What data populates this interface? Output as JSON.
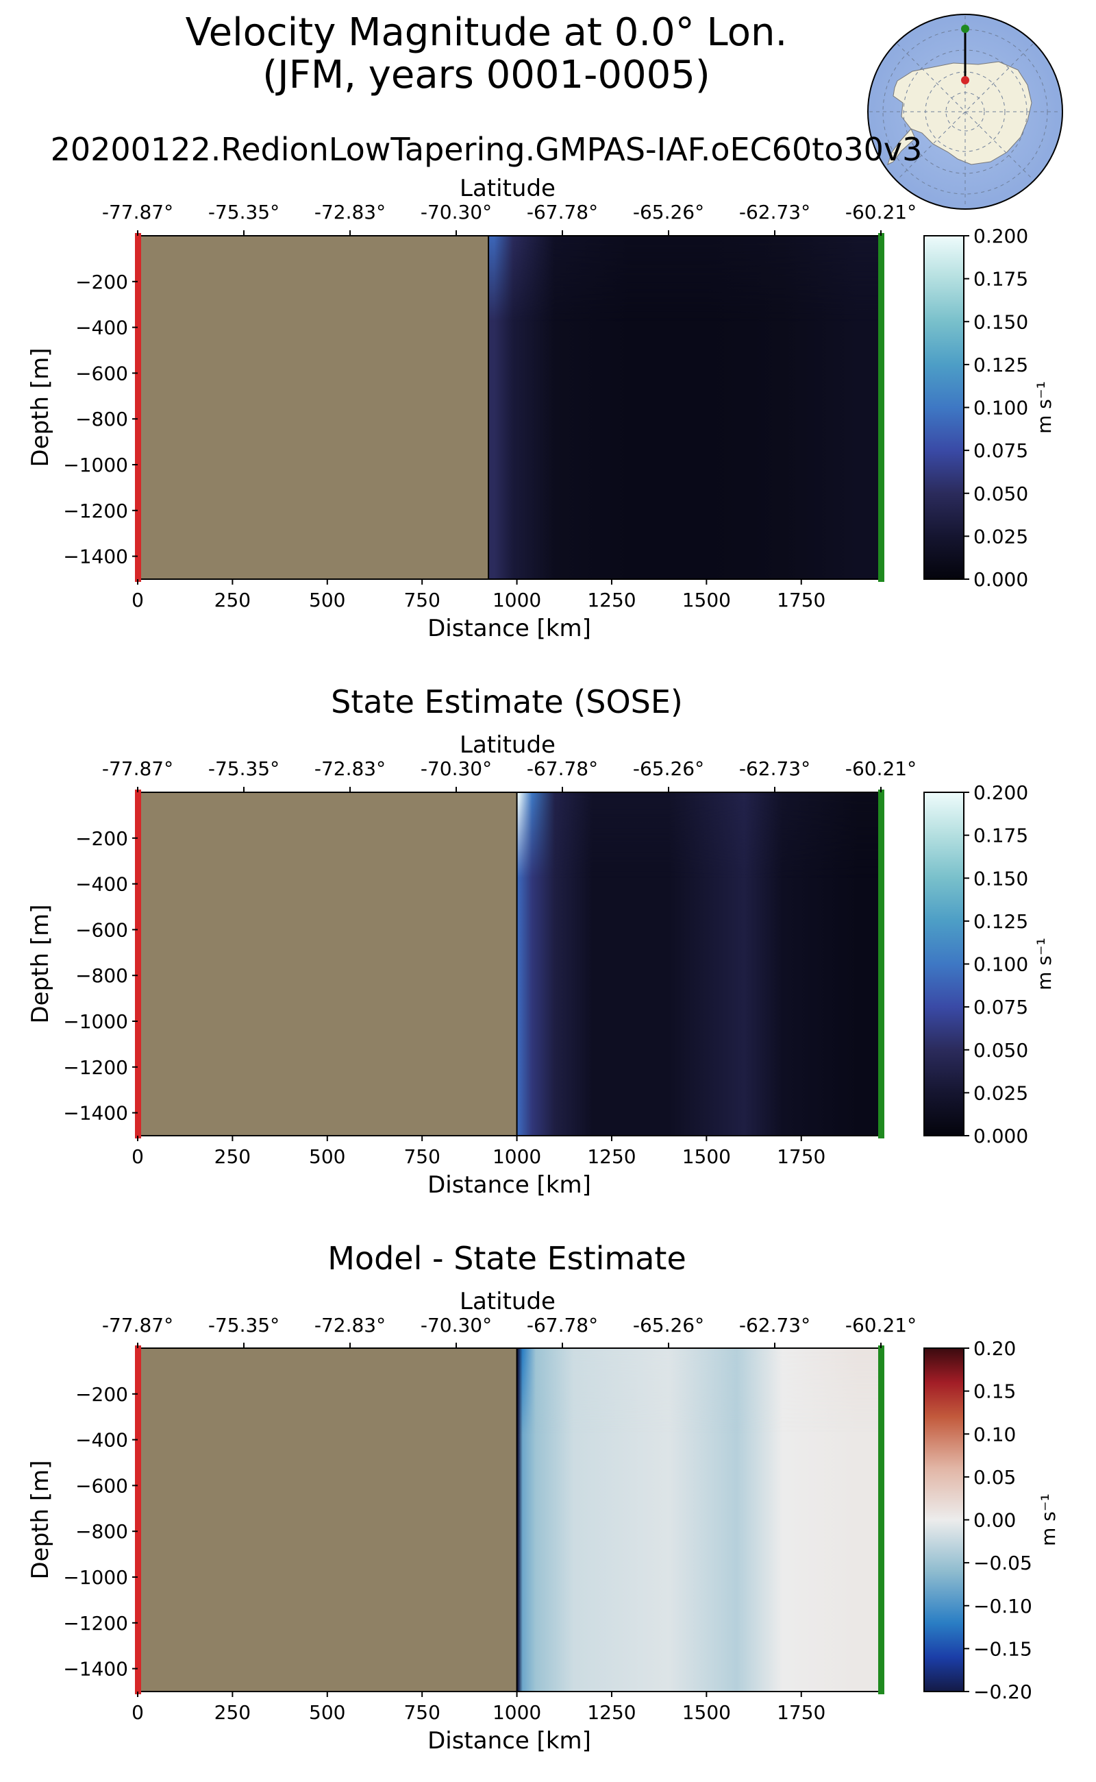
{
  "figure": {
    "title_line1": "Velocity Magnitude at 0.0° Lon.",
    "title_line2": "(JFM, years 0001-0005)",
    "inset_map": "antarctic-polar-stereographic-map"
  },
  "colors": {
    "land": "#8f8165",
    "start_marker": "#d62728",
    "end_marker": "#1f8a1f",
    "section_line": "#000000"
  },
  "chart_data": [
    {
      "type": "heatmap",
      "title": "20200122.RedionLowTapering.GMPAS-IAF.oEC60to30v3",
      "xlabel": "Distance [km]",
      "ylabel": "Depth [m]",
      "top_xlabel": "Latitude",
      "xlim": [
        0,
        1960
      ],
      "ylim": [
        -1500,
        0
      ],
      "x_ticks": [
        "0",
        "250",
        "500",
        "750",
        "1000",
        "1250",
        "1500",
        "1750"
      ],
      "y_ticks": [
        "−200",
        "−400",
        "−600",
        "−800",
        "−1000",
        "−1200",
        "−1400"
      ],
      "lat_ticks": [
        "-77.87°",
        "-75.35°",
        "-72.83°",
        "-70.30°",
        "-67.78°",
        "-65.26°",
        "-62.73°",
        "-60.21°"
      ],
      "land_until_km": 925,
      "colormap": "sequential",
      "colorbar": {
        "label": "m s⁻¹",
        "ticks": [
          "0.000",
          "0.025",
          "0.050",
          "0.075",
          "0.100",
          "0.125",
          "0.150",
          "0.175",
          "0.200"
        ],
        "range": [
          0,
          0.2
        ]
      },
      "column_values": [
        {
          "km": 940,
          "value": 0.05,
          "surface": 0.09
        },
        {
          "km": 990,
          "value": 0.03,
          "surface": 0.05
        },
        {
          "km": 1100,
          "value": 0.012,
          "surface": 0.018
        },
        {
          "km": 1300,
          "value": 0.008,
          "surface": 0.012
        },
        {
          "km": 1500,
          "value": 0.008,
          "surface": 0.012
        },
        {
          "km": 1700,
          "value": 0.01,
          "surface": 0.014
        },
        {
          "km": 1900,
          "value": 0.015,
          "surface": 0.02
        }
      ]
    },
    {
      "type": "heatmap",
      "title": "State Estimate (SOSE)",
      "xlabel": "Distance [km]",
      "ylabel": "Depth [m]",
      "top_xlabel": "Latitude",
      "xlim": [
        0,
        1960
      ],
      "ylim": [
        -1500,
        0
      ],
      "x_ticks": [
        "0",
        "250",
        "500",
        "750",
        "1000",
        "1250",
        "1500",
        "1750"
      ],
      "y_ticks": [
        "−200",
        "−400",
        "−600",
        "−800",
        "−1000",
        "−1200",
        "−1400"
      ],
      "lat_ticks": [
        "-77.87°",
        "-75.35°",
        "-72.83°",
        "-70.30°",
        "-67.78°",
        "-65.26°",
        "-62.73°",
        "-60.21°"
      ],
      "land_until_km": 1000,
      "colormap": "sequential",
      "colorbar": {
        "label": "m s⁻¹",
        "ticks": [
          "0.000",
          "0.025",
          "0.050",
          "0.075",
          "0.100",
          "0.125",
          "0.150",
          "0.175",
          "0.200"
        ],
        "range": [
          0,
          0.2
        ]
      },
      "column_values": [
        {
          "km": 1005,
          "value": 0.09,
          "surface": 0.2
        },
        {
          "km": 1040,
          "value": 0.06,
          "surface": 0.1
        },
        {
          "km": 1100,
          "value": 0.035,
          "surface": 0.04
        },
        {
          "km": 1200,
          "value": 0.015,
          "surface": 0.02
        },
        {
          "km": 1400,
          "value": 0.015,
          "surface": 0.02
        },
        {
          "km": 1600,
          "value": 0.035,
          "surface": 0.04
        },
        {
          "km": 1700,
          "value": 0.015,
          "surface": 0.02
        },
        {
          "km": 1900,
          "value": 0.008,
          "surface": 0.01
        }
      ]
    },
    {
      "type": "heatmap",
      "title": "Model - State Estimate",
      "xlabel": "Distance [km]",
      "ylabel": "Depth [m]",
      "top_xlabel": "Latitude",
      "xlim": [
        0,
        1960
      ],
      "ylim": [
        -1500,
        0
      ],
      "x_ticks": [
        "0",
        "250",
        "500",
        "750",
        "1000",
        "1250",
        "1500",
        "1750"
      ],
      "y_ticks": [
        "−200",
        "−400",
        "−600",
        "−800",
        "−1000",
        "−1200",
        "−1400"
      ],
      "lat_ticks": [
        "-77.87°",
        "-75.35°",
        "-72.83°",
        "-70.30°",
        "-67.78°",
        "-65.26°",
        "-62.73°",
        "-60.21°"
      ],
      "land_until_km": 1000,
      "colormap": "diverging",
      "colorbar": {
        "label": "m s⁻¹",
        "ticks": [
          "0.20",
          "0.15",
          "0.10",
          "0.05",
          "0.00",
          "−0.05",
          "−0.10",
          "−0.15",
          "−0.20"
        ],
        "range": [
          -0.2,
          0.2
        ]
      },
      "column_values": [
        {
          "km": 1003,
          "value": -0.2,
          "surface": -0.2
        },
        {
          "km": 1015,
          "value": -0.08,
          "surface": -0.12
        },
        {
          "km": 1050,
          "value": -0.05,
          "surface": -0.05
        },
        {
          "km": 1150,
          "value": -0.02,
          "surface": -0.02
        },
        {
          "km": 1400,
          "value": -0.01,
          "surface": -0.01
        },
        {
          "km": 1580,
          "value": -0.035,
          "surface": -0.035
        },
        {
          "km": 1700,
          "value": 0.0,
          "surface": 0.0
        },
        {
          "km": 1900,
          "value": 0.005,
          "surface": 0.01
        }
      ]
    }
  ]
}
